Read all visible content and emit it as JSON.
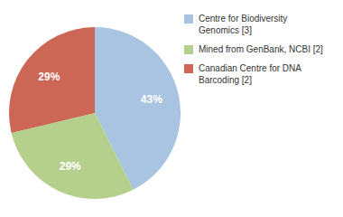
{
  "chart_data": {
    "type": "pie",
    "categories": [
      "Centre for Biodiversity\nGenomics [3]",
      "Mined from GenBank, NCBI [2]",
      "Canadian Centre for DNA\nBarcoding [2]"
    ],
    "values": [
      43,
      29,
      29
    ],
    "value_labels": [
      "43%",
      "29%",
      "29%"
    ],
    "colors": [
      "#a8c4e0",
      "#b5d08c",
      "#cc6655"
    ],
    "data_labels": true,
    "legend": "right"
  }
}
